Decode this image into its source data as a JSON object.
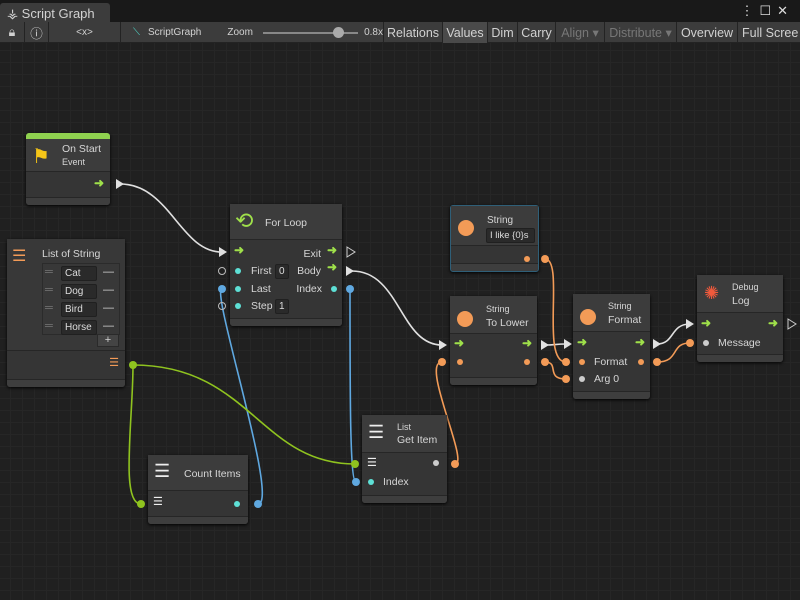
{
  "window": {
    "tab_title": "Script Graph",
    "tab_icon": "hierarchy-icon",
    "menu_icon": "kebab-icon",
    "maximize_icon": "maximize-icon",
    "close_icon": "close-icon"
  },
  "toolbar": {
    "lock_icon": "lock-icon",
    "info_icon": "info-icon",
    "variables_label": "<x>",
    "graph_name": "ScriptGraph",
    "zoom_label": "Zoom",
    "zoom_value": "0.8x",
    "zoom_level": 0.8,
    "buttons": [
      "Relations",
      "Values",
      "Dim",
      "Carry",
      "Align ▾",
      "Distribute ▾",
      "Overview",
      "Full Scree"
    ]
  },
  "nodes": {
    "on_start": {
      "title": "On Start",
      "subtitle": "Event",
      "icon": "flag-icon",
      "accent": "#8fd14f"
    },
    "list": {
      "title": "List of String",
      "items": [
        "Cat",
        "Dog",
        "Bird",
        "Horse"
      ],
      "remove": "—",
      "add": "+"
    },
    "for_loop": {
      "title": "For Loop",
      "exit": "Exit",
      "body": "Body",
      "first": "First",
      "first_value": "0",
      "last": "Last",
      "index": "Index",
      "step": "Step",
      "step_value": "1"
    },
    "string": {
      "category": "String",
      "value": "I like {0}s"
    },
    "to_lower": {
      "category": "String",
      "title": "To Lower"
    },
    "format": {
      "category": "String",
      "title": "Format",
      "format_port": "Format",
      "arg_port": "Arg 0"
    },
    "debug_log": {
      "category": "Debug",
      "title": "Log",
      "message": "Message"
    },
    "get_item": {
      "category": "List",
      "title": "Get Item",
      "index": "Index"
    },
    "count_items": {
      "title": "Count Items"
    }
  },
  "colors": {
    "flow": "#9fe04a",
    "string": "#f39b57",
    "int": "#5fa8e0",
    "list": "#8fc31f",
    "float": "#5ee0d6"
  }
}
